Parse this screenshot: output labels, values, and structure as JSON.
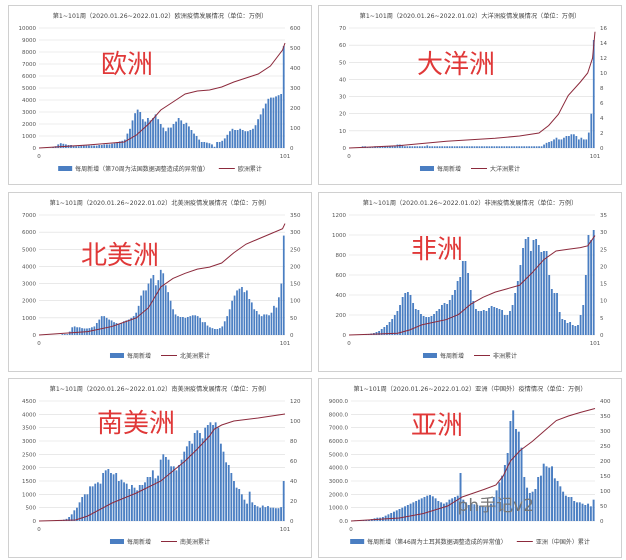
{
  "colors": {
    "bar": "#4a7ec2",
    "line": "#8c2a3c",
    "label": "#e03838",
    "grid": "#dcdcdc"
  },
  "watermark": "ph手记v2",
  "chart_data": [
    {
      "type": "bar+line",
      "title": "第1~101周（2020.01.26~2022.01.02）欧洲疫情发展情况（单位：万例）",
      "label": "欧洲",
      "xticks": [
        "0",
        "101"
      ],
      "xlim": [
        0,
        101
      ],
      "ylim_left": [
        0,
        10000
      ],
      "yticks_left": [
        "0",
        "1000",
        "2000",
        "3000",
        "4000",
        "5000",
        "6000",
        "7000",
        "8000",
        "9000",
        "10000"
      ],
      "ylim_right": [
        0,
        600
      ],
      "yticks_right": [
        "0",
        "100",
        "200",
        "300",
        "400",
        "500",
        "600"
      ],
      "legend": [
        "每周新增（第70周为法国数据调整造成的异常值）",
        "欧洲累计"
      ],
      "weekly": [
        0,
        0,
        0,
        0,
        10,
        50,
        150,
        300,
        400,
        350,
        300,
        250,
        250,
        200,
        150,
        150,
        200,
        200,
        200,
        200,
        200,
        200,
        200,
        250,
        250,
        300,
        300,
        300,
        350,
        400,
        500,
        550,
        600,
        700,
        1200,
        1600,
        2300,
        2900,
        3200,
        3000,
        2400,
        2200,
        2500,
        2300,
        2500,
        2800,
        2400,
        2000,
        1700,
        1400,
        1700,
        1700,
        2000,
        2200,
        2500,
        2300,
        2000,
        2100,
        1800,
        1500,
        1200,
        1000,
        700,
        500,
        500,
        450,
        400,
        300,
        100,
        500,
        500,
        600,
        800,
        1100,
        1400,
        1600,
        1500,
        1500,
        1600,
        1500,
        1400,
        1400,
        1500,
        1600,
        1900,
        2400,
        2800,
        3300,
        3700,
        4100,
        4200,
        4200,
        4300,
        4400,
        4500,
        8500
      ],
      "cumulative": {
        "x": [
          0,
          20,
          35,
          40,
          45,
          50,
          55,
          60,
          65,
          70,
          75,
          80,
          85,
          90,
          95,
          100,
          101
        ],
        "y": [
          0,
          15,
          30,
          65,
          120,
          190,
          230,
          270,
          285,
          290,
          305,
          330,
          350,
          370,
          410,
          490,
          525
        ]
      }
    },
    {
      "type": "bar+line",
      "title": "第1~101周（2020.01.26~2022.01.02）大洋洲疫情发展情况（单位：万例）",
      "label": "大洋洲",
      "xticks": [
        "0",
        "101"
      ],
      "xlim": [
        0,
        101
      ],
      "ylim_left": [
        0,
        70
      ],
      "yticks_left": [
        "0",
        "10",
        "20",
        "30",
        "40",
        "50",
        "60",
        "70"
      ],
      "ylim_right": [
        0,
        16
      ],
      "yticks_right": [
        "0",
        "2",
        "4",
        "6",
        "8",
        "10",
        "12",
        "14",
        "16"
      ],
      "legend": [
        "每周新增",
        "大洋洲累计"
      ],
      "weekly": [
        0,
        0,
        0,
        0,
        0.5,
        1,
        1,
        0.5,
        0.5,
        0.5,
        1,
        1,
        1,
        1,
        1,
        1,
        1,
        1,
        1,
        2,
        2,
        1.5,
        1,
        1,
        1,
        1,
        1,
        1,
        1,
        1,
        1,
        1.5,
        1,
        1,
        1,
        1,
        1,
        1,
        1,
        1,
        1,
        1,
        1,
        1,
        1,
        1,
        1,
        1,
        1,
        1,
        1,
        1,
        1,
        1,
        1,
        1,
        1,
        1,
        1,
        1,
        1,
        1,
        1,
        1,
        1,
        1,
        1,
        1,
        1,
        1,
        1,
        1,
        1,
        1,
        1,
        1,
        1,
        1,
        2,
        3,
        3.5,
        4,
        5,
        6,
        5,
        5,
        6,
        7,
        7,
        8,
        8,
        7,
        5,
        6,
        5,
        5,
        9,
        20,
        63
      ],
      "cumulative": {
        "x": [
          0,
          20,
          30,
          40,
          50,
          60,
          70,
          78,
          82,
          86,
          90,
          95,
          98,
          100,
          101
        ],
        "y": [
          0,
          0.3,
          0.6,
          0.9,
          1.1,
          1.3,
          1.6,
          2.0,
          3,
          4.5,
          7,
          8.8,
          10,
          12,
          15.5
        ]
      }
    },
    {
      "type": "bar+line",
      "title": "第1~101周（2020.01.26~2022.01.02）北美洲疫情发展情况（单位：万例）",
      "label": "北美洲",
      "xticks": [
        "0",
        "101"
      ],
      "xlim": [
        0,
        101
      ],
      "ylim_left": [
        0,
        7000
      ],
      "yticks_left": [
        "0",
        "1000",
        "2000",
        "3000",
        "4000",
        "5000",
        "6000",
        "7000"
      ],
      "ylim_right": [
        0,
        350
      ],
      "yticks_right": [
        "0",
        "50",
        "100",
        "150",
        "200",
        "250",
        "300",
        "350"
      ],
      "legend": [
        "每周新增",
        "北美洲累计"
      ],
      "weekly": [
        0,
        0,
        0,
        0,
        0,
        0,
        0,
        0,
        0,
        50,
        50,
        50,
        200,
        450,
        500,
        450,
        450,
        400,
        380,
        380,
        400,
        450,
        500,
        700,
        900,
        1100,
        1100,
        1000,
        900,
        850,
        750,
        700,
        650,
        700,
        800,
        850,
        900,
        1000,
        1100,
        1300,
        1700,
        2300,
        2600,
        2600,
        3000,
        3300,
        3500,
        2900,
        3200,
        3800,
        3600,
        2900,
        2500,
        2000,
        1500,
        1200,
        1100,
        1050,
        1050,
        1000,
        1050,
        1100,
        1150,
        1150,
        1100,
        1000,
        750,
        750,
        550,
        450,
        400,
        350,
        350,
        400,
        500,
        800,
        1100,
        1500,
        2000,
        2300,
        2600,
        2700,
        2800,
        2500,
        2600,
        2100,
        1900,
        1500,
        1400,
        1200,
        1100,
        1200,
        1200,
        1150,
        1300,
        1700,
        1600,
        2200,
        3000,
        5800
      ],
      "cumulative": {
        "x": [
          0,
          20,
          30,
          40,
          45,
          50,
          55,
          60,
          65,
          70,
          75,
          80,
          85,
          90,
          95,
          100,
          101
        ],
        "y": [
          0,
          10,
          25,
          50,
          80,
          140,
          165,
          180,
          192,
          198,
          210,
          240,
          265,
          280,
          295,
          310,
          325
        ]
      }
    },
    {
      "type": "bar+line",
      "title": "第1~101周（2020.01.26~2022.01.02）非洲疫情发展情况（单位：万例）",
      "label": "非洲",
      "xticks": [
        "0",
        "101"
      ],
      "xlim": [
        0,
        101
      ],
      "ylim_left": [
        0,
        1200
      ],
      "yticks_left": [
        "0",
        "200",
        "400",
        "600",
        "800",
        "1000",
        "1200"
      ],
      "ylim_right": [
        0,
        35
      ],
      "yticks_right": [
        "0",
        "5",
        "10",
        "15",
        "20",
        "25",
        "30",
        "35"
      ],
      "legend": [
        "每周新增",
        "非洲累计"
      ],
      "weekly": [
        0,
        0,
        0,
        0,
        0,
        5,
        10,
        10,
        15,
        20,
        30,
        40,
        60,
        80,
        100,
        130,
        160,
        200,
        240,
        300,
        380,
        420,
        430,
        400,
        320,
        260,
        250,
        210,
        190,
        180,
        180,
        190,
        210,
        240,
        260,
        300,
        320,
        310,
        350,
        400,
        450,
        540,
        580,
        740,
        740,
        620,
        450,
        340,
        260,
        240,
        240,
        250,
        240,
        270,
        290,
        280,
        270,
        260,
        250,
        200,
        200,
        240,
        300,
        420,
        540,
        700,
        870,
        960,
        980,
        840,
        950,
        960,
        900,
        830,
        840,
        840,
        600,
        460,
        420,
        420,
        230,
        160,
        150,
        120,
        130,
        100,
        90,
        100,
        200,
        300,
        600,
        1000,
        950,
        1050
      ],
      "cumulative": {
        "x": [
          0,
          20,
          25,
          30,
          40,
          45,
          50,
          55,
          60,
          65,
          70,
          75,
          80,
          85,
          90,
          95,
          98,
          101
        ],
        "y": [
          0,
          0.5,
          1.5,
          3,
          4.5,
          6,
          9,
          11,
          12.5,
          13.5,
          14.5,
          18,
          22,
          24.5,
          25,
          25.5,
          26,
          29
        ]
      }
    },
    {
      "type": "bar+line",
      "title": "第1~101周（2020.01.26~2022.01.02）南美洲疫情发展情况（单位：万例）",
      "label": "南美洲",
      "xticks": [
        "0",
        "101"
      ],
      "xlim": [
        0,
        101
      ],
      "ylim_left": [
        0,
        4500
      ],
      "yticks_left": [
        "0",
        "500",
        "1000",
        "1500",
        "2000",
        "2500",
        "3000",
        "3500",
        "4000",
        "4500"
      ],
      "ylim_right": [
        0,
        120
      ],
      "yticks_right": [
        "0",
        "20",
        "40",
        "60",
        "80",
        "100",
        "120"
      ],
      "legend": [
        "每周新增",
        "南美洲累计"
      ],
      "weekly": [
        0,
        0,
        0,
        0,
        0,
        0,
        30,
        30,
        30,
        50,
        80,
        150,
        250,
        400,
        500,
        700,
        900,
        1000,
        1000,
        1300,
        1300,
        1400,
        1450,
        1400,
        1800,
        1900,
        1950,
        1800,
        1750,
        1800,
        1500,
        1550,
        1450,
        1400,
        1200,
        1350,
        1250,
        1150,
        1350,
        1350,
        1450,
        1650,
        1650,
        1900,
        1600,
        1700,
        2300,
        2500,
        2400,
        2300,
        2050,
        2050,
        1900,
        2100,
        2300,
        2600,
        2800,
        3000,
        2900,
        3300,
        3400,
        3300,
        3100,
        3500,
        3600,
        3700,
        3600,
        3700,
        3500,
        2900,
        2600,
        2200,
        2100,
        1800,
        1500,
        1250,
        1200,
        1000,
        800,
        650,
        1100,
        700,
        600,
        550,
        500,
        580,
        520,
        560,
        500,
        500,
        480,
        480,
        520,
        1500
      ],
      "cumulative": {
        "x": [
          0,
          15,
          20,
          30,
          40,
          50,
          60,
          65,
          70,
          72,
          75,
          80,
          90,
          101
        ],
        "y": [
          0,
          1,
          5,
          18,
          28,
          40,
          60,
          72,
          85,
          92,
          96,
          100,
          103,
          107
        ]
      }
    },
    {
      "type": "bar+line",
      "title": "第1~101周（2020.01.26~2022.01.02）亚洲（中国外）疫情情况（单位：万例）",
      "label": "亚洲",
      "xticks": [
        "0"
      ],
      "xlim": [
        0,
        101
      ],
      "ylim_left": [
        0,
        9000
      ],
      "yticks_left": [
        "0.0",
        "1000.0",
        "2000.0",
        "3000.0",
        "4000.0",
        "5000.0",
        "6000.0",
        "7000.0",
        "8000.0",
        "9000.0"
      ],
      "ylim_right": [
        0,
        400
      ],
      "yticks_right": [
        "0",
        "50",
        "100",
        "150",
        "200",
        "250",
        "300",
        "350",
        "400"
      ],
      "legend": [
        "每周新增（第46周为土耳其数据调整造成的异常值）",
        "亚洲（中国外）累计"
      ],
      "weekly": [
        0,
        50,
        50,
        50,
        50,
        80,
        100,
        150,
        200,
        250,
        250,
        300,
        400,
        500,
        600,
        700,
        800,
        900,
        1000,
        1100,
        1200,
        1300,
        1400,
        1500,
        1600,
        1700,
        1800,
        1900,
        1950,
        1850,
        1700,
        1500,
        1400,
        1300,
        1400,
        1600,
        1700,
        1800,
        1900,
        3600,
        1600,
        1400,
        1200,
        1300,
        1250,
        1200,
        1150,
        1100,
        1050,
        1100,
        1300,
        1800,
        2300,
        2900,
        3400,
        4200,
        5100,
        7500,
        8300,
        6900,
        6700,
        5500,
        3300,
        2500,
        2100,
        2200,
        2400,
        3300,
        3400,
        4300,
        4100,
        4000,
        4100,
        3200,
        3000,
        2600,
        2200,
        1900,
        1800,
        1800,
        1500,
        1400,
        1400,
        1300,
        1200,
        1300,
        1100,
        1600
      ],
      "cumulative": {
        "x": [
          0,
          20,
          30,
          40,
          46,
          55,
          60,
          63,
          66,
          70,
          75,
          80,
          85,
          90,
          95,
          101
        ],
        "y": [
          0,
          10,
          25,
          50,
          80,
          105,
          120,
          150,
          200,
          235,
          265,
          300,
          335,
          350,
          362,
          375
        ]
      }
    }
  ]
}
